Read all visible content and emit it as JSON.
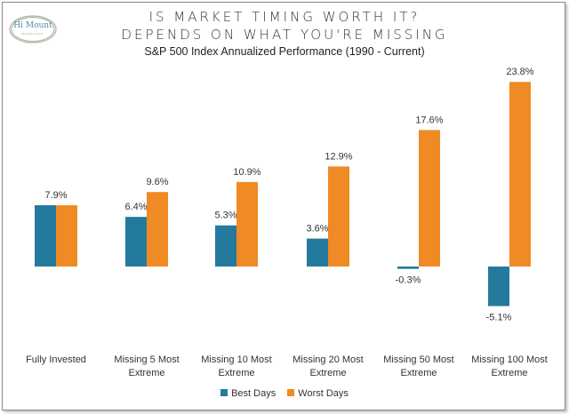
{
  "logo": {
    "text": "Hi Mount",
    "subtext": "RESEARCH"
  },
  "chart_data": {
    "type": "bar",
    "title": "IS MARKET TIMING WORTH IT?",
    "title_line2": "DEPENDS ON WHAT YOU'RE MISSING",
    "subtitle": "S&P 500 Index Annualized Performance (1990 - Current)",
    "categories": [
      [
        "Fully Invested",
        ""
      ],
      [
        "Missing 5 Most",
        "Extreme"
      ],
      [
        "Missing 10 Most",
        "Extreme"
      ],
      [
        "Missing 20 Most",
        "Extreme"
      ],
      [
        "Missing 50 Most",
        "Extreme"
      ],
      [
        "Missing 100 Most",
        "Extreme"
      ]
    ],
    "series": [
      {
        "name": "Best Days",
        "color": "#237a9c",
        "values": [
          7.9,
          6.4,
          5.3,
          3.6,
          -0.3,
          -5.1
        ],
        "labels": [
          "7.9%",
          "6.4%",
          "5.3%",
          "3.6%",
          "-0.3%",
          "-5.1%"
        ]
      },
      {
        "name": "Worst Days",
        "color": "#f08a24",
        "values": [
          7.9,
          9.6,
          10.9,
          12.9,
          17.6,
          23.8
        ],
        "labels": [
          "",
          "9.6%",
          "10.9%",
          "12.9%",
          "17.6%",
          "23.8%"
        ]
      }
    ],
    "xlabel": "",
    "ylabel": "",
    "ylim": [
      -6,
      25
    ],
    "grid": false,
    "legend": "bottom"
  }
}
